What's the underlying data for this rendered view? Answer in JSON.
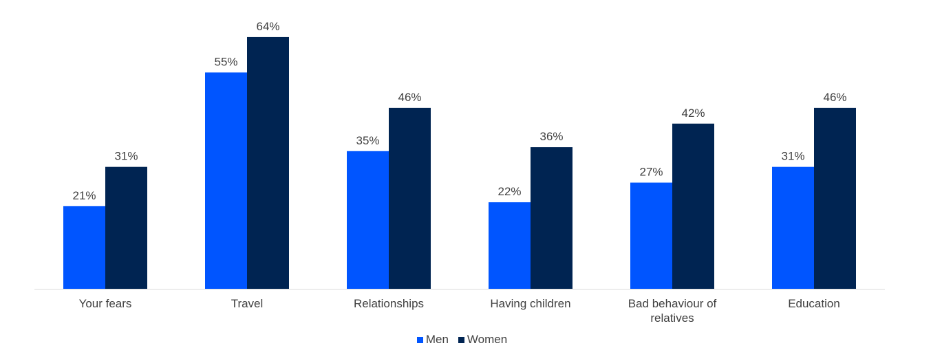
{
  "chart_data": {
    "type": "bar",
    "title": "",
    "xlabel": "",
    "ylabel": "",
    "ylim": [
      0,
      70
    ],
    "grid": false,
    "legend_position": "bottom",
    "categories": [
      "Your fears",
      "Travel",
      "Relationships",
      "Having children",
      "Bad behaviour of relatives",
      "Education"
    ],
    "series": [
      {
        "name": "Men",
        "color": "#0055FF",
        "values": [
          21,
          55,
          35,
          22,
          27,
          31
        ],
        "labels": [
          "21%",
          "55%",
          "35%",
          "22%",
          "27%",
          "31%"
        ]
      },
      {
        "name": "Women",
        "color": "#002452",
        "values": [
          31,
          64,
          46,
          36,
          42,
          46
        ],
        "labels": [
          "31%",
          "64%",
          "46%",
          "36%",
          "42%",
          "46%"
        ]
      }
    ]
  }
}
